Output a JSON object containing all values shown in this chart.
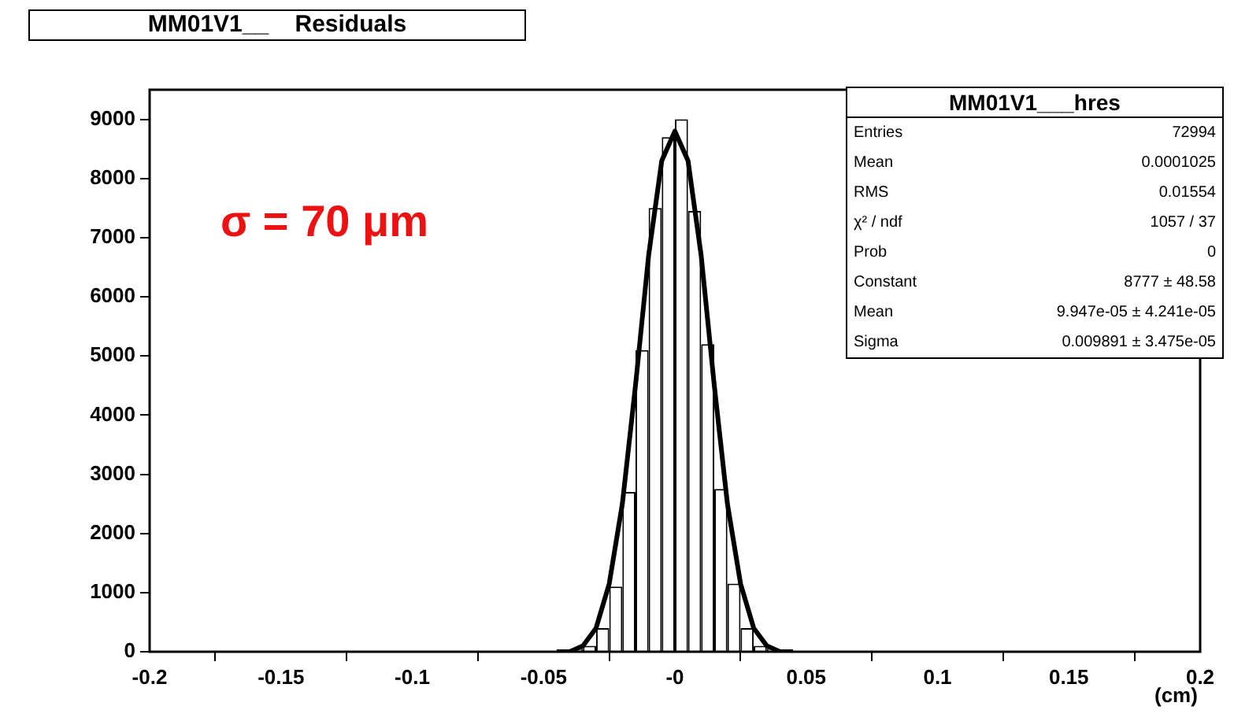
{
  "chart_data": {
    "type": "histogram",
    "title": "MM01V1__    Residuals",
    "xlabel": "(cm)",
    "bins": [
      -0.05,
      -0.045,
      -0.04,
      -0.035,
      -0.03,
      -0.025,
      -0.02,
      -0.015,
      -0.01,
      -0.005,
      0,
      0.005,
      0.01,
      0.015,
      0.02,
      0.025,
      0.03,
      0.035,
      0.04,
      0.045,
      0.05
    ],
    "series": [
      {
        "color": "#000000",
        "values": [
          0,
          0,
          50,
          100,
          400,
          1100,
          2700,
          5100,
          7500,
          8700,
          9000,
          7450,
          5200,
          2750,
          1150,
          400,
          100,
          50,
          0,
          0
        ]
      },
      {
        "type": "line",
        "color": "#000000",
        "x": [
          -0.045,
          -0.04,
          -0.035,
          -0.03,
          -0.025,
          -0.02,
          -0.015,
          -0.01,
          -0.005,
          0,
          0.005,
          0.01,
          0.015,
          0.02,
          0.025,
          0.03,
          0.035,
          0.04,
          0.045
        ],
        "values": [
          0,
          0,
          100,
          400,
          1150,
          2500,
          4500,
          6700,
          8300,
          8800,
          8300,
          6700,
          4500,
          2500,
          1150,
          400,
          100,
          0,
          0
        ]
      }
    ],
    "xlim": [
      -0.2,
      0.2
    ],
    "xticks": [
      -0.2,
      -0.15,
      -0.1,
      -0.05,
      {
        "value": 0,
        "label": "-0"
      },
      0.05,
      0.1,
      0.15,
      0.2
    ],
    "ylim": [
      0,
      9500
    ],
    "yticks": [
      0,
      1000,
      2000,
      3000,
      4000,
      5000,
      6000,
      7000,
      8000,
      9000
    ],
    "grid": false,
    "legend": false,
    "annotations": [
      "σ = 70 μm",
      "MM01V1___hres",
      "Entries\t72994",
      "Mean\t0.0001025",
      "RMS\t0.01554",
      "χ² / ndf\t1057 / 37",
      "Prob\t0",
      "Constant\t8777 ± 48.58",
      "Mean\t9.947e-05 ± 4.241e-05",
      "Sigma\t0.009891 ± 3.475e-05"
    ]
  }
}
